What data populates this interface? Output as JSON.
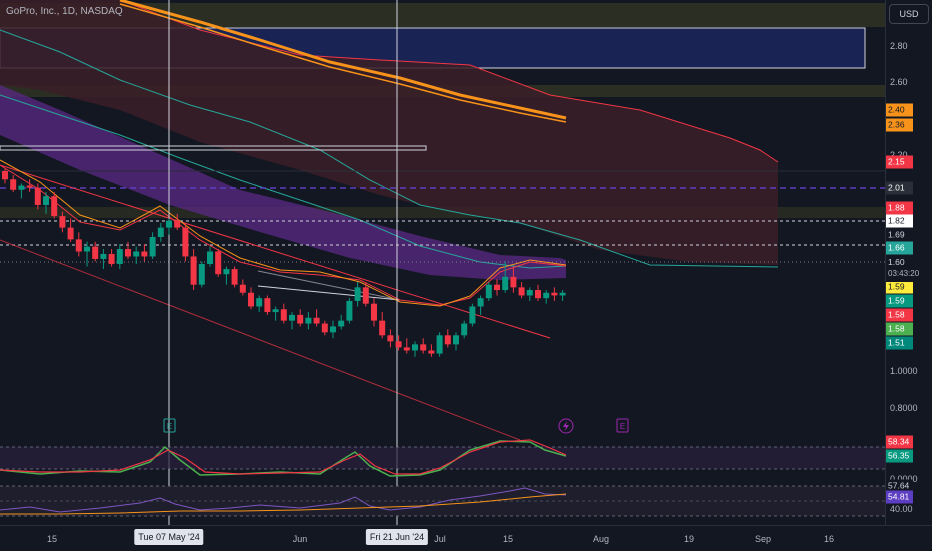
{
  "header": {
    "title": "GoPro, Inc., 1D, NASDAQ"
  },
  "axis": {
    "currency": "USD",
    "ticks": [
      "2.80",
      "2.60",
      "2.20",
      "1.0000",
      "0.8000",
      "0.0000",
      "40.00"
    ]
  },
  "badges": [
    {
      "label": "2.40",
      "bg": "#f7931a",
      "fg": "#131722"
    },
    {
      "label": "2.36",
      "bg": "#f7931a",
      "fg": "#131722"
    },
    {
      "label": "2.15",
      "bg": "#f23645",
      "fg": "#ffffff"
    },
    {
      "label": "2.01",
      "bg": "#2a2e39",
      "fg": "#ffffff"
    },
    {
      "label": "1.88",
      "bg": "#f23645",
      "fg": "#ffffff"
    },
    {
      "label": "1.82",
      "bg": "#ffffff",
      "fg": "#131722"
    },
    {
      "label": "1.69",
      "bg": "#131722",
      "fg": "#d1d4dc"
    },
    {
      "label": "1.66",
      "bg": "#26a69a",
      "fg": "#ffffff"
    },
    {
      "label": "1.59",
      "bg": "#ffeb3b",
      "fg": "#131722"
    },
    {
      "label": "1.59",
      "bg": "#089981",
      "fg": "#ffffff"
    },
    {
      "label": "1.58",
      "bg": "#f23645",
      "fg": "#ffffff"
    },
    {
      "label": "1.58",
      "bg": "#4caf50",
      "fg": "#ffffff"
    },
    {
      "label": "1.51",
      "bg": "#00897b",
      "fg": "#ffffff"
    },
    {
      "label": "58.34",
      "bg": "#f23645",
      "fg": "#ffffff"
    },
    {
      "label": "56.35",
      "bg": "#089981",
      "fg": "#ffffff"
    },
    {
      "label": "57.64",
      "bg": "#131722",
      "fg": "#d1d4dc"
    },
    {
      "label": "54.81",
      "bg": "#5c3ec2",
      "fg": "#ffffff"
    }
  ],
  "last_price": {
    "label": "1.60",
    "countdown": "03:43:20"
  },
  "xaxis": {
    "ticks": [
      "15",
      "Jun",
      "Jul",
      "15",
      "Aug",
      "19",
      "Sep",
      "16"
    ],
    "highlights": [
      "Tue 07 May '24",
      "Fri 21 Jun '24"
    ]
  },
  "events": [
    "E",
    "E"
  ],
  "chart_data": {
    "type": "candlestick",
    "title": "GoPro, Inc., 1D, NASDAQ",
    "ylim": [
      0.75,
      3.0
    ],
    "log_scale": true,
    "grid": false,
    "series": [
      {
        "values": [
          [
            2.12,
            2.13,
            2.06,
            2.08
          ],
          [
            2.08,
            2.1,
            2.02,
            2.03
          ],
          [
            2.03,
            2.06,
            1.99,
            2.05
          ],
          [
            2.05,
            2.08,
            2.02,
            2.04
          ],
          [
            2.04,
            2.06,
            1.94,
            1.96
          ],
          [
            1.96,
            2.02,
            1.92,
            2.0
          ],
          [
            2.0,
            2.02,
            1.9,
            1.91
          ],
          [
            1.91,
            1.93,
            1.84,
            1.86
          ],
          [
            1.86,
            1.9,
            1.8,
            1.81
          ],
          [
            1.81,
            1.84,
            1.74,
            1.76
          ],
          [
            1.76,
            1.8,
            1.7,
            1.78
          ],
          [
            1.78,
            1.8,
            1.72,
            1.73
          ],
          [
            1.73,
            1.77,
            1.69,
            1.75
          ],
          [
            1.75,
            1.77,
            1.7,
            1.71
          ],
          [
            1.71,
            1.79,
            1.69,
            1.77
          ],
          [
            1.77,
            1.8,
            1.73,
            1.74
          ],
          [
            1.74,
            1.78,
            1.71,
            1.76
          ],
          [
            1.76,
            1.79,
            1.72,
            1.74
          ],
          [
            1.74,
            1.84,
            1.73,
            1.82
          ],
          [
            1.82,
            1.88,
            1.8,
            1.86
          ],
          [
            1.86,
            1.9,
            1.83,
            1.89
          ],
          [
            1.89,
            1.92,
            1.85,
            1.86
          ],
          [
            1.86,
            1.88,
            1.72,
            1.74
          ],
          [
            1.74,
            1.77,
            1.61,
            1.63
          ],
          [
            1.63,
            1.72,
            1.62,
            1.71
          ],
          [
            1.71,
            1.78,
            1.7,
            1.76
          ],
          [
            1.76,
            1.77,
            1.66,
            1.67
          ],
          [
            1.67,
            1.7,
            1.63,
            1.69
          ],
          [
            1.69,
            1.7,
            1.62,
            1.63
          ],
          [
            1.63,
            1.65,
            1.59,
            1.6
          ],
          [
            1.6,
            1.62,
            1.54,
            1.55
          ],
          [
            1.55,
            1.59,
            1.53,
            1.58
          ],
          [
            1.58,
            1.59,
            1.52,
            1.53
          ],
          [
            1.53,
            1.55,
            1.5,
            1.54
          ],
          [
            1.54,
            1.56,
            1.49,
            1.5
          ],
          [
            1.5,
            1.53,
            1.47,
            1.52
          ],
          [
            1.52,
            1.54,
            1.48,
            1.49
          ],
          [
            1.49,
            1.53,
            1.47,
            1.51
          ],
          [
            1.51,
            1.54,
            1.48,
            1.49
          ],
          [
            1.49,
            1.5,
            1.45,
            1.46
          ],
          [
            1.46,
            1.5,
            1.44,
            1.48
          ],
          [
            1.48,
            1.52,
            1.47,
            1.5
          ],
          [
            1.5,
            1.58,
            1.49,
            1.57
          ],
          [
            1.57,
            1.64,
            1.55,
            1.62
          ],
          [
            1.62,
            1.64,
            1.55,
            1.56
          ],
          [
            1.56,
            1.58,
            1.48,
            1.5
          ],
          [
            1.5,
            1.53,
            1.44,
            1.45
          ],
          [
            1.45,
            1.47,
            1.41,
            1.43
          ],
          [
            1.43,
            1.45,
            1.4,
            1.41
          ],
          [
            1.41,
            1.44,
            1.39,
            1.4
          ],
          [
            1.4,
            1.43,
            1.38,
            1.42
          ],
          [
            1.42,
            1.44,
            1.39,
            1.4
          ],
          [
            1.4,
            1.42,
            1.38,
            1.39
          ],
          [
            1.39,
            1.46,
            1.38,
            1.45
          ],
          [
            1.45,
            1.47,
            1.41,
            1.42
          ],
          [
            1.42,
            1.46,
            1.4,
            1.45
          ],
          [
            1.45,
            1.5,
            1.44,
            1.49
          ],
          [
            1.49,
            1.56,
            1.48,
            1.55
          ],
          [
            1.55,
            1.59,
            1.52,
            1.58
          ],
          [
            1.58,
            1.64,
            1.57,
            1.63
          ],
          [
            1.63,
            1.65,
            1.59,
            1.61
          ],
          [
            1.61,
            1.72,
            1.6,
            1.66
          ],
          [
            1.66,
            1.7,
            1.6,
            1.62
          ],
          [
            1.62,
            1.64,
            1.58,
            1.59
          ],
          [
            1.59,
            1.62,
            1.57,
            1.61
          ],
          [
            1.61,
            1.63,
            1.57,
            1.58
          ],
          [
            1.58,
            1.61,
            1.56,
            1.6
          ],
          [
            1.6,
            1.62,
            1.57,
            1.59
          ],
          [
            1.59,
            1.61,
            1.57,
            1.6
          ]
        ]
      }
    ]
  }
}
